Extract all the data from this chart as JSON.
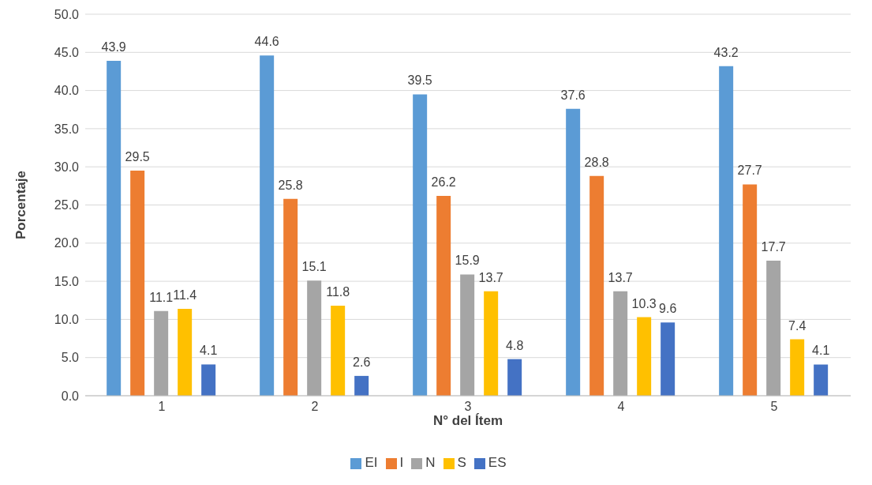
{
  "chart_data": {
    "type": "bar",
    "xlabel": "N° del Ítem",
    "ylabel": "Porcentaje",
    "categories": [
      "1",
      "2",
      "3",
      "4",
      "5"
    ],
    "series": [
      {
        "name": "EI",
        "color": "#5b9bd5",
        "values": [
          43.9,
          44.6,
          39.5,
          37.6,
          43.2
        ]
      },
      {
        "name": "I",
        "color": "#ed7d31",
        "values": [
          29.5,
          25.8,
          26.2,
          28.8,
          27.7
        ]
      },
      {
        "name": "N",
        "color": "#a5a5a5",
        "values": [
          11.1,
          15.1,
          15.9,
          13.7,
          17.7
        ]
      },
      {
        "name": "S",
        "color": "#ffc000",
        "values": [
          11.4,
          11.8,
          13.7,
          10.3,
          7.4
        ]
      },
      {
        "name": "ES",
        "color": "#4472c4",
        "values": [
          4.1,
          2.6,
          4.8,
          9.6,
          4.1
        ]
      }
    ],
    "ylim": [
      0,
      50
    ],
    "yticks": [
      {
        "value": 0,
        "label": "0.0"
      },
      {
        "value": 5,
        "label": "5.0"
      },
      {
        "value": 10,
        "label": "10.0"
      },
      {
        "value": 15,
        "label": "15.0"
      },
      {
        "value": 20,
        "label": "20.0"
      },
      {
        "value": 25,
        "label": "25.0"
      },
      {
        "value": 30,
        "label": "30.0"
      },
      {
        "value": 35,
        "label": "35.0"
      },
      {
        "value": 40,
        "label": "40.0"
      },
      {
        "value": 45,
        "label": "45.0"
      },
      {
        "value": 50,
        "label": "50.0"
      }
    ],
    "grid": "y",
    "legend": "bottom",
    "data_labels": true
  }
}
